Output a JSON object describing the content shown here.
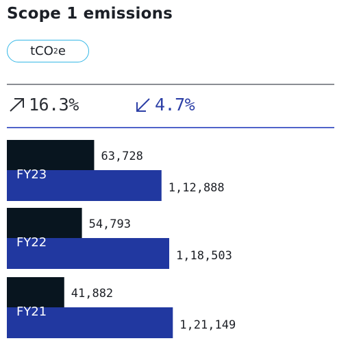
{
  "title": "Scope 1 emissions",
  "unit": {
    "main": "tCO",
    "sub": "2",
    "tail": "e"
  },
  "changes": {
    "up": {
      "value": "16.3%",
      "icon": "arrow-up-right-icon",
      "color": "#2a2d33"
    },
    "down": {
      "value": "4.7%",
      "icon": "arrow-down-left-icon",
      "color": "#2c3fa6"
    }
  },
  "colors": {
    "dark": "#08151f",
    "blue": "#2138a0",
    "pill_border": "#34b7e6"
  },
  "chart_data": {
    "type": "bar",
    "orientation": "horizontal",
    "categories": [
      "FY23",
      "FY22",
      "FY21"
    ],
    "series": [
      {
        "values": [
          63728,
          54793,
          41882
        ],
        "labels": [
          "63,728",
          "54,793",
          "41,882"
        ],
        "color": "#08151f"
      },
      {
        "values": [
          112888,
          118503,
          121149
        ],
        "labels": [
          "1,12,888",
          "1,18,503",
          "1,21,149"
        ],
        "color": "#2138a0"
      }
    ],
    "title": "Scope 1 emissions",
    "xlabel": "",
    "ylabel": "",
    "grid": false
  }
}
